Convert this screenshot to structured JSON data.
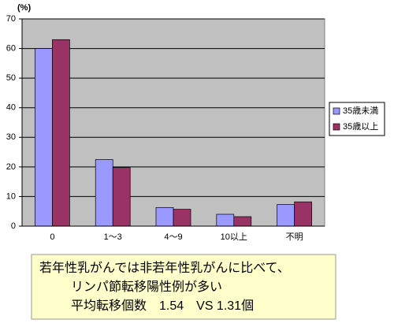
{
  "chart_data": {
    "type": "bar",
    "ylabel": "(%)",
    "categories": [
      "0",
      "1～3",
      "4～9",
      "10以上",
      "不明"
    ],
    "series": [
      {
        "name": "35歳未満",
        "color": "#9999ff",
        "values": [
          60,
          22.5,
          6.3,
          4.0,
          7.3
        ]
      },
      {
        "name": "35歳以上",
        "color": "#993366",
        "values": [
          63,
          19.8,
          5.7,
          3.2,
          8.2
        ]
      }
    ],
    "ylim": [
      0,
      70
    ],
    "yticks": [
      0,
      10,
      20,
      30,
      40,
      50,
      60,
      70
    ],
    "grid": true,
    "legend": "right",
    "annotation": [
      "若年性乳がんでは非若年性乳がんに比べて、",
      "リンパ節転移陽性例が多い",
      "平均転移個数　1.54　VS 1.31個"
    ]
  }
}
